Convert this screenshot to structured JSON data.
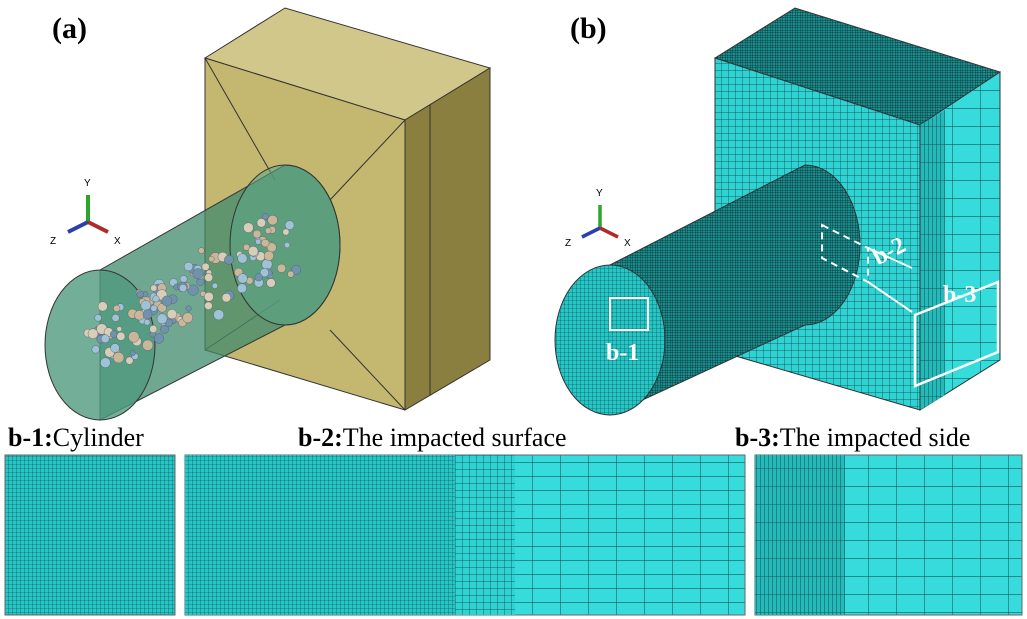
{
  "panels": {
    "a": {
      "label": "(a)",
      "axes": {
        "y": "Y",
        "z": "Z",
        "x": "X"
      }
    },
    "b": {
      "label": "(b)",
      "axes": {
        "y": "Y",
        "z": "Z",
        "x": "X"
      },
      "regions": [
        "b-1",
        "b-2",
        "b-3"
      ]
    }
  },
  "details": [
    {
      "id": "b-1:",
      "caption": "Cylinder"
    },
    {
      "id": "b-2:",
      "caption": "The impacted surface"
    },
    {
      "id": "b-3:",
      "caption": "The impacted side"
    }
  ]
}
